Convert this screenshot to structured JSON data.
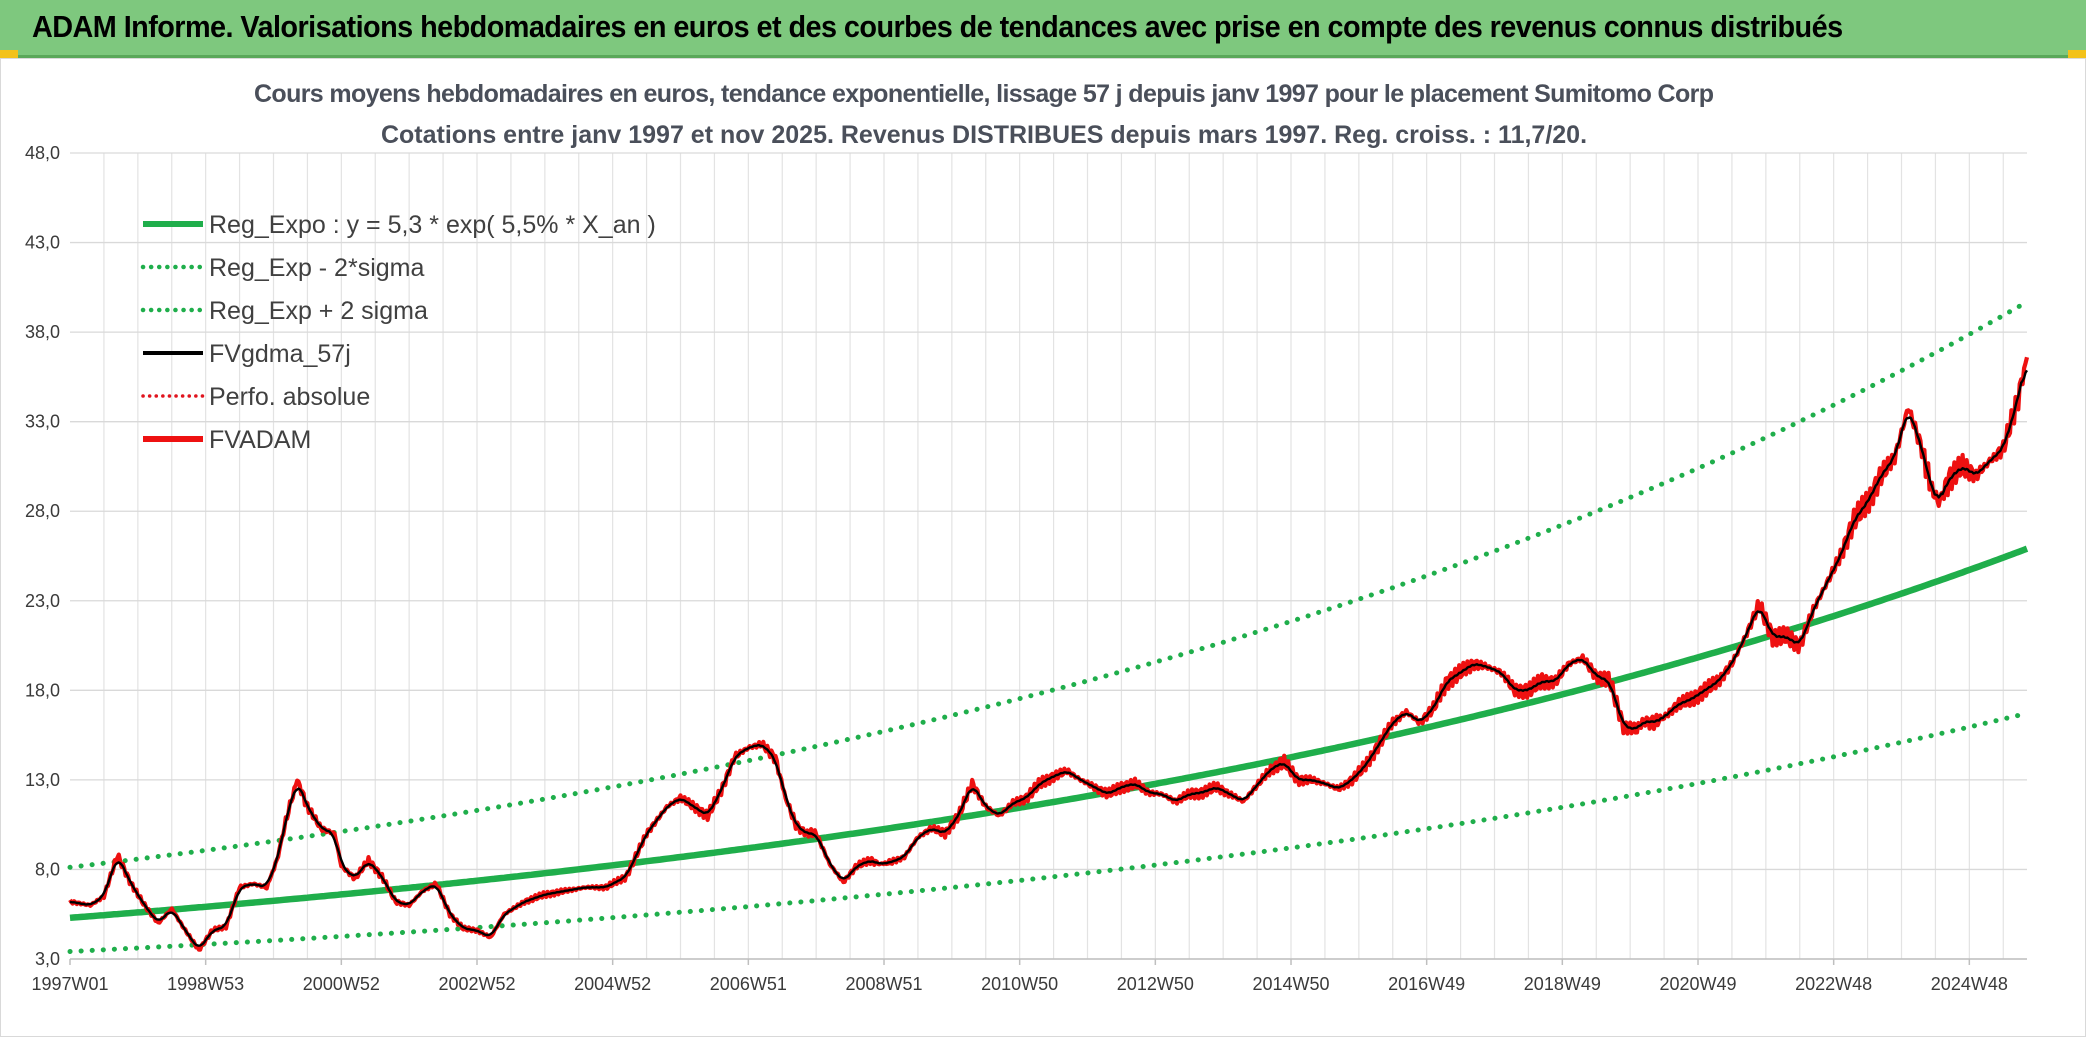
{
  "header": {
    "title": "ADAM Informe. Valorisations hebdomadaires en euros et des courbes de tendances avec prise en compte des revenus connus distribués",
    "background_color": "#7ec87e"
  },
  "chart_data": {
    "type": "line",
    "title_lines": [
      "Cours moyens hebdomadaires en euros, tendance exponentielle, lissage 57 j depuis janv 1997 pour le placement Sumitomo Corp",
      "Cotations entre janv 1997 et nov 2025. Revenus DISTRIBUES depuis mars 1997. Reg. croiss. : 11,7/20."
    ],
    "xlabel": "",
    "ylabel": "",
    "ylim": [
      3.0,
      48.0
    ],
    "y_ticks": [
      "3,0",
      "8,0",
      "13,0",
      "18,0",
      "23,0",
      "28,0",
      "33,0",
      "38,0",
      "43,0",
      "48,0"
    ],
    "xlim": [
      1997.0,
      2025.85
    ],
    "x_ticks": [
      {
        "label": "1997W01",
        "year": 1997.0
      },
      {
        "label": "1998W53",
        "year": 1999.0
      },
      {
        "label": "2000W52",
        "year": 2001.0
      },
      {
        "label": "2002W52",
        "year": 2003.0
      },
      {
        "label": "2004W52",
        "year": 2005.0
      },
      {
        "label": "2006W51",
        "year": 2007.0
      },
      {
        "label": "2008W51",
        "year": 2009.0
      },
      {
        "label": "2010W50",
        "year": 2011.0
      },
      {
        "label": "2012W50",
        "year": 2013.0
      },
      {
        "label": "2014W50",
        "year": 2015.0
      },
      {
        "label": "2016W49",
        "year": 2017.0
      },
      {
        "label": "2018W49",
        "year": 2019.0
      },
      {
        "label": "2020W49",
        "year": 2021.0
      },
      {
        "label": "2022W48",
        "year": 2023.0
      },
      {
        "label": "2024W48",
        "year": 2025.0
      }
    ],
    "grid": true,
    "legend_position": "top-left",
    "legend": [
      {
        "label": "Reg_Expo : y = 5,3 * exp( 5,5% *  X_an )",
        "color": "#1fae4b",
        "style": "solid-thick"
      },
      {
        "label": "Reg_Exp - 2*sigma",
        "color": "#1fae4b",
        "style": "dotted"
      },
      {
        "label": "Reg_Exp + 2 sigma",
        "color": "#1fae4b",
        "style": "dotted"
      },
      {
        "label": "FVgdma_57j",
        "color": "#000000",
        "style": "solid"
      },
      {
        "label": "Perfo. absolue",
        "color": "#e0141e",
        "style": "dotted"
      },
      {
        "label": "FVADAM",
        "color": "#ee1111",
        "style": "solid-thick"
      }
    ],
    "series": [
      {
        "name": "Reg_Expo",
        "kind": "exponential",
        "a": 5.3,
        "rate": 0.055,
        "color": "#1fae4b"
      },
      {
        "name": "Reg_Exp - 2*sigma",
        "kind": "exponential",
        "a": 3.42,
        "rate": 0.055,
        "color": "#1fae4b"
      },
      {
        "name": "Reg_Exp + 2 sigma",
        "kind": "exponential",
        "a": 8.12,
        "rate": 0.055,
        "color": "#1fae4b"
      },
      {
        "name": "FVADAM",
        "color": "#ee1111",
        "x": [
          1997.0,
          1997.3,
          1997.5,
          1997.7,
          1997.9,
          1998.1,
          1998.3,
          1998.5,
          1998.7,
          1998.9,
          1999.1,
          1999.3,
          1999.5,
          1999.7,
          1999.9,
          2000.05,
          2000.2,
          2000.35,
          2000.5,
          2000.7,
          2000.9,
          2001.0,
          2001.2,
          2001.4,
          2001.6,
          2001.8,
          2002.0,
          2002.2,
          2002.4,
          2002.6,
          2002.8,
          2003.0,
          2003.2,
          2003.4,
          2003.7,
          2004.0,
          2004.3,
          2004.6,
          2004.9,
          2005.2,
          2005.5,
          2005.8,
          2006.0,
          2006.2,
          2006.4,
          2006.6,
          2006.8,
          2007.0,
          2007.2,
          2007.4,
          2007.55,
          2007.7,
          2007.85,
          2008.0,
          2008.2,
          2008.4,
          2008.6,
          2008.8,
          2008.95,
          2009.1,
          2009.3,
          2009.5,
          2009.7,
          2009.9,
          2010.1,
          2010.3,
          2010.5,
          2010.7,
          2010.9,
          2011.1,
          2011.3,
          2011.5,
          2011.7,
          2011.9,
          2012.1,
          2012.3,
          2012.5,
          2012.7,
          2012.9,
          2013.1,
          2013.3,
          2013.5,
          2013.7,
          2013.9,
          2014.1,
          2014.3,
          2014.5,
          2014.7,
          2014.9,
          2015.1,
          2015.3,
          2015.5,
          2015.7,
          2015.9,
          2016.1,
          2016.3,
          2016.5,
          2016.7,
          2016.9,
          2017.1,
          2017.3,
          2017.5,
          2017.7,
          2017.9,
          2018.1,
          2018.3,
          2018.5,
          2018.7,
          2018.9,
          2019.1,
          2019.3,
          2019.5,
          2019.7,
          2019.9,
          2020.1,
          2020.2,
          2020.35,
          2020.5,
          2020.7,
          2020.9,
          2021.1,
          2021.3,
          2021.5,
          2021.7,
          2021.9,
          2022.1,
          2022.3,
          2022.5,
          2022.7,
          2022.9,
          2023.1,
          2023.3,
          2023.5,
          2023.7,
          2023.9,
          2024.1,
          2024.3,
          2024.45,
          2024.55,
          2024.7,
          2024.9,
          2025.1,
          2025.3,
          2025.5,
          2025.7,
          2025.85
        ],
        "y": [
          6.2,
          6.0,
          6.5,
          8.8,
          7.2,
          6.0,
          5.0,
          5.8,
          4.6,
          3.5,
          4.6,
          4.8,
          7.0,
          7.2,
          7.0,
          8.5,
          11.0,
          13.0,
          11.5,
          10.3,
          10.0,
          8.2,
          7.5,
          8.5,
          7.6,
          6.2,
          6.0,
          6.8,
          7.2,
          5.5,
          4.7,
          4.6,
          4.2,
          5.5,
          6.2,
          6.6,
          6.8,
          7.0,
          7.0,
          7.6,
          10.0,
          11.5,
          12.0,
          11.5,
          11.0,
          12.4,
          14.3,
          14.8,
          15.0,
          14.2,
          12.0,
          10.5,
          10.0,
          10.0,
          8.3,
          7.3,
          8.2,
          8.5,
          8.3,
          8.4,
          8.7,
          9.8,
          10.3,
          10.0,
          11.0,
          12.8,
          11.5,
          11.0,
          11.7,
          12.0,
          12.8,
          13.2,
          13.5,
          13.0,
          12.6,
          12.2,
          12.6,
          12.8,
          12.3,
          12.2,
          11.8,
          12.2,
          12.3,
          12.6,
          12.2,
          11.8,
          12.7,
          13.6,
          14.0,
          13.0,
          13.0,
          12.8,
          12.5,
          13.0,
          13.8,
          15.0,
          16.2,
          16.8,
          16.2,
          17.0,
          18.5,
          19.0,
          19.5,
          19.3,
          19.0,
          18.0,
          18.0,
          18.5,
          18.5,
          19.5,
          19.8,
          18.8,
          18.5,
          16.0,
          15.8,
          16.3,
          16.2,
          16.5,
          17.2,
          17.5,
          18.0,
          18.5,
          19.5,
          21.0,
          22.8,
          21.0,
          21.0,
          20.5,
          22.5,
          24.0,
          25.5,
          27.5,
          28.5,
          30.0,
          31.0,
          33.8,
          31.5,
          29.2,
          28.5,
          29.8,
          30.5,
          30.0,
          30.8,
          31.5,
          34.0,
          36.6
        ]
      }
    ]
  }
}
